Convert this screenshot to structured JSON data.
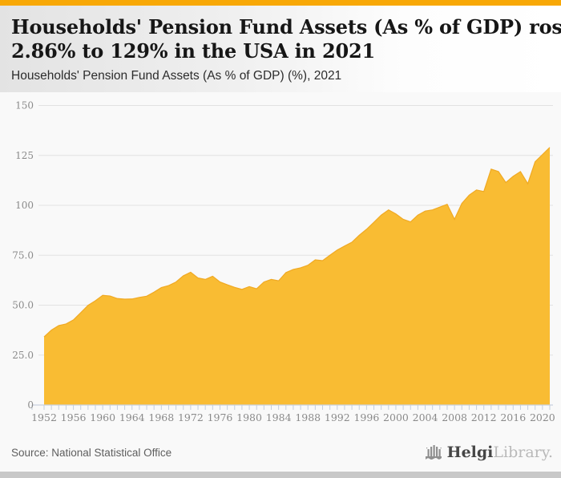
{
  "header": {
    "title_lines": [
      "Households' Pension Fund Assets (As % of GDP) rose",
      "2.86% to 129% in the USA in 2021"
    ],
    "subtitle": "Households' Pension Fund Assets (As % of GDP) (%), 2021"
  },
  "chart_data": {
    "type": "area",
    "title": "Households' Pension Fund Assets (As % of GDP) (%), 2021",
    "x": [
      1952,
      1953,
      1954,
      1955,
      1956,
      1957,
      1958,
      1959,
      1960,
      1961,
      1962,
      1963,
      1964,
      1965,
      1966,
      1967,
      1968,
      1969,
      1970,
      1971,
      1972,
      1973,
      1974,
      1975,
      1976,
      1977,
      1978,
      1979,
      1980,
      1981,
      1982,
      1983,
      1984,
      1985,
      1986,
      1987,
      1988,
      1989,
      1990,
      1991,
      1992,
      1993,
      1994,
      1995,
      1996,
      1997,
      1998,
      1999,
      2000,
      2001,
      2002,
      2003,
      2004,
      2005,
      2006,
      2007,
      2008,
      2009,
      2010,
      2011,
      2012,
      2013,
      2014,
      2015,
      2016,
      2017,
      2018,
      2019,
      2020,
      2021
    ],
    "values": [
      34.1,
      37.5,
      39.8,
      40.6,
      42.6,
      46.2,
      49.9,
      52.2,
      54.9,
      54.6,
      53.3,
      53.0,
      53.1,
      53.9,
      54.5,
      56.5,
      58.8,
      59.8,
      61.6,
      64.7,
      66.5,
      63.6,
      62.9,
      64.5,
      61.6,
      60.2,
      58.9,
      57.9,
      59.3,
      58.2,
      61.6,
      62.9,
      62.2,
      66.3,
      67.9,
      68.7,
      70.0,
      72.7,
      72.3,
      75.0,
      77.6,
      79.6,
      81.5,
      85.0,
      88.0,
      91.5,
      95.1,
      97.7,
      95.7,
      93.0,
      91.7,
      95.1,
      97.1,
      97.7,
      99.1,
      100.5,
      93.0,
      100.9,
      105.1,
      107.7,
      106.9,
      118.1,
      116.9,
      111.4,
      114.5,
      116.9,
      110.8,
      121.8,
      125.4,
      129.0
    ],
    "xlabel": "",
    "ylabel": "",
    "ylim": [
      0,
      150
    ],
    "yticks": [
      {
        "value": 0,
        "label": "0"
      },
      {
        "value": 25,
        "label": "25.0"
      },
      {
        "value": 50,
        "label": "50.0"
      },
      {
        "value": 75,
        "label": "75.0"
      },
      {
        "value": 100,
        "label": "100"
      },
      {
        "value": 125,
        "label": "125"
      },
      {
        "value": 150,
        "label": "150"
      }
    ],
    "xtick_every_years": 1,
    "xlabel_every_years": 4,
    "grid": true,
    "legend": false
  },
  "footer": {
    "source": "Source: National Statistical Office",
    "logo": {
      "brand_bold": "Helgi",
      "brand_light": "Library."
    }
  },
  "colors": {
    "top_bar": "#F8A806",
    "area_fill": "#F9BC33",
    "area_edge": "#F0A923",
    "grid_line": "#e2e2e2",
    "axis_line": "#c9d2e0",
    "tick_mark": "#c4cedd",
    "tick_text": "#8a8a8a",
    "chart_background": "#f9f9f9"
  }
}
